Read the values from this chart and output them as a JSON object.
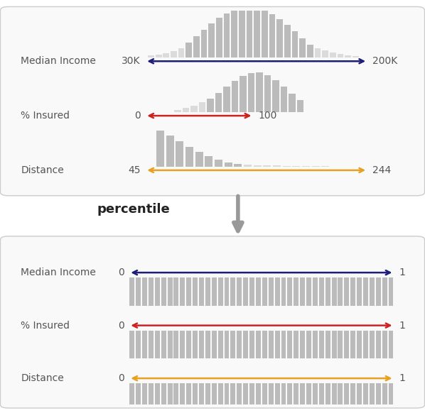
{
  "fig_width": 5.98,
  "fig_height": 5.82,
  "bg_color": "#ffffff",
  "panel_border": "#cccccc",
  "panel_bg": "#f9f9f9",
  "bar_color": "#bbbbbb",
  "tail_color": "#cccccc",
  "rows_top": [
    {
      "label": "Median Income",
      "left_val": "30K",
      "right_val": "200K",
      "arrow_color": "#1e1e7a",
      "hist_type": "normal"
    },
    {
      "label": "% Insured",
      "left_val": "0",
      "right_val": "100",
      "arrow_color": "#cc2222",
      "hist_type": "left_skew"
    },
    {
      "label": "Distance",
      "left_val": "45",
      "right_val": "244",
      "arrow_color": "#e8a020",
      "hist_type": "right_skew"
    }
  ],
  "rows_bottom": [
    {
      "label": "Median Income",
      "left_val": "0",
      "right_val": "1",
      "arrow_color": "#1e1e7a"
    },
    {
      "label": "% Insured",
      "left_val": "0",
      "right_val": "1",
      "arrow_color": "#cc2222"
    },
    {
      "label": "Distance",
      "left_val": "0",
      "right_val": "1",
      "arrow_color": "#e8a020"
    }
  ],
  "percentile_label": "percentile",
  "label_color": "#555555",
  "val_color": "#555555",
  "label_fontsize": 10,
  "val_fontsize": 10
}
